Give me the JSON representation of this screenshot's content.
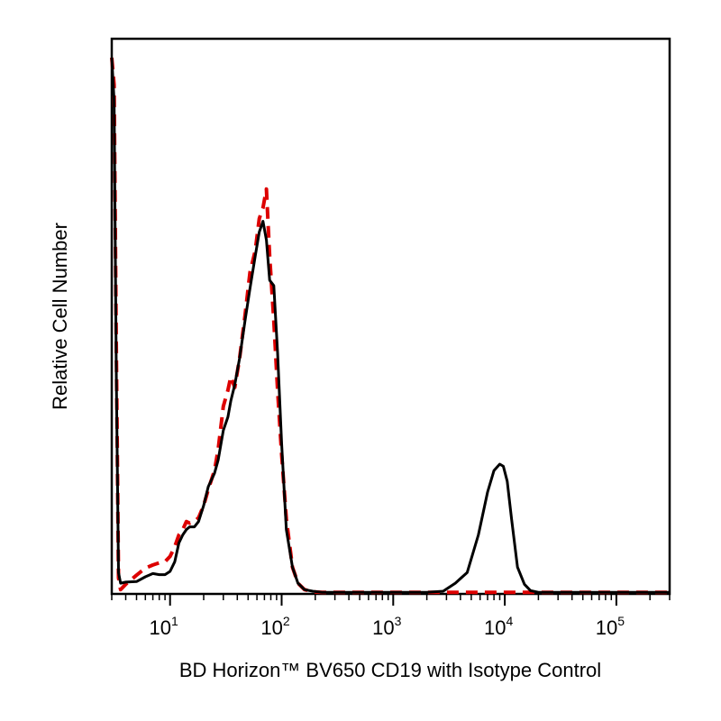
{
  "chart_data": {
    "type": "line",
    "title": "",
    "xlabel": "BD Horizon™ BV650 CD19 with Isotype Control",
    "ylabel": "Relative Cell Number",
    "x_scale": "log",
    "xlim": [
      3,
      300000
    ],
    "ylim": [
      0,
      100
    ],
    "grid": false,
    "legend": "none",
    "x_ticks": [
      {
        "value": 10,
        "base": "10",
        "exponent": "1"
      },
      {
        "value": 100,
        "base": "10",
        "exponent": "2"
      },
      {
        "value": 1000,
        "base": "10",
        "exponent": "3"
      },
      {
        "value": 10000,
        "base": "10",
        "exponent": "4"
      },
      {
        "value": 100000,
        "base": "10",
        "exponent": "5"
      }
    ],
    "series": [
      {
        "style": "solid",
        "color": "#000000",
        "x": [
          3.0,
          3.15,
          3.3,
          3.45,
          3.6,
          4,
          5,
          6,
          7,
          8,
          9,
          10,
          11,
          12,
          13,
          14,
          15,
          16.5,
          18,
          20,
          22,
          25,
          27,
          30,
          33,
          35,
          38,
          42,
          47,
          52,
          58,
          63,
          68,
          73,
          78,
          85,
          92,
          100,
          110,
          125,
          140,
          160,
          190,
          230,
          300,
          500,
          1000,
          2000,
          2800,
          3600,
          4600,
          5800,
          7000,
          8000,
          9000,
          9700,
          10500,
          11500,
          13000,
          15000,
          17000,
          20000,
          25000,
          30000,
          50000,
          100000,
          300000
        ],
        "y": [
          100,
          92,
          40,
          4,
          2,
          2.2,
          2.3,
          3.2,
          3.8,
          3.6,
          3.6,
          4.2,
          6,
          9.5,
          11,
          12,
          12.5,
          12.5,
          13.5,
          16.5,
          20,
          22.5,
          25,
          30.5,
          33,
          36,
          39,
          44,
          51,
          57,
          63,
          67.5,
          69.5,
          66,
          58.5,
          57.5,
          45,
          28,
          12,
          5,
          2,
          0.8,
          0.5,
          0.3,
          0.3,
          0.3,
          0.3,
          0.3,
          0.5,
          2,
          4,
          11,
          19,
          23,
          24.2,
          23.8,
          21,
          14,
          5,
          1.8,
          0.6,
          0.3,
          0.3,
          0.3,
          0.3,
          0.3,
          0.3
        ]
      },
      {
        "style": "dashed",
        "color": "#dd0000",
        "x": [
          3.0,
          3.15,
          3.3,
          3.45,
          3.6,
          4,
          5,
          6,
          7,
          8,
          9,
          10,
          11,
          12,
          13,
          14,
          15,
          16.5,
          18,
          20,
          22,
          25,
          27,
          30,
          33,
          35,
          38,
          42,
          47,
          52,
          58,
          63,
          68,
          73,
          78,
          85,
          92,
          100,
          110,
          125,
          140,
          160,
          190,
          230,
          300,
          500,
          1000,
          3000,
          10000,
          30000,
          100000,
          300000
        ],
        "y": [
          100,
          95,
          45,
          3,
          0.8,
          1.8,
          3.5,
          4.8,
          5.4,
          5.8,
          6,
          7,
          8.8,
          11,
          12,
          13.5,
          13.2,
          13.5,
          14.2,
          16.5,
          19.5,
          23,
          27,
          35,
          38,
          40.5,
          38.5,
          44,
          52,
          60,
          64,
          70,
          72,
          75.5,
          63,
          51,
          38,
          26,
          14,
          5,
          2,
          0.8,
          0.4,
          0.3,
          0.3,
          0.3,
          0.3,
          0.3,
          0.3,
          0.3,
          0.3,
          0.3
        ]
      }
    ]
  }
}
